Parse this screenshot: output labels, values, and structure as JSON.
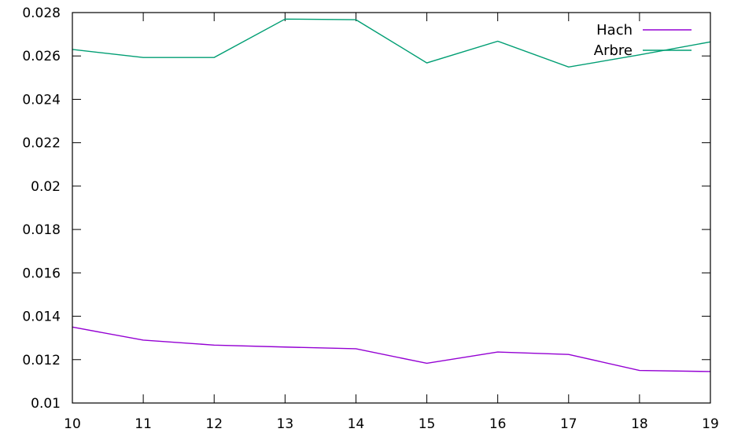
{
  "chart_data": {
    "type": "line",
    "title": "",
    "xlabel": "",
    "ylabel": "",
    "x": [
      10,
      11,
      12,
      13,
      14,
      15,
      16,
      17,
      18,
      19
    ],
    "xlim": [
      10,
      19
    ],
    "ylim": [
      0.01,
      0.028
    ],
    "x_ticks": [
      "10",
      "11",
      "12",
      "13",
      "14",
      "15",
      "16",
      "17",
      "18",
      "19"
    ],
    "y_ticks": [
      "0.01",
      "0.012",
      "0.014",
      "0.016",
      "0.018",
      "0.02",
      "0.022",
      "0.024",
      "0.026",
      "0.028"
    ],
    "grid": false,
    "legend_position": "top-right",
    "series": [
      {
        "name": "Hach",
        "color": "#9400d3",
        "values": [
          0.0135,
          0.0129,
          0.01267,
          0.01258,
          0.0125,
          0.01183,
          0.01235,
          0.01224,
          0.0115,
          0.01145
        ]
      },
      {
        "name": "Arbre",
        "color": "#009e73",
        "values": [
          0.0263,
          0.02593,
          0.02593,
          0.0277,
          0.02767,
          0.02568,
          0.02668,
          0.02549,
          0.02605,
          0.02665
        ]
      }
    ]
  }
}
